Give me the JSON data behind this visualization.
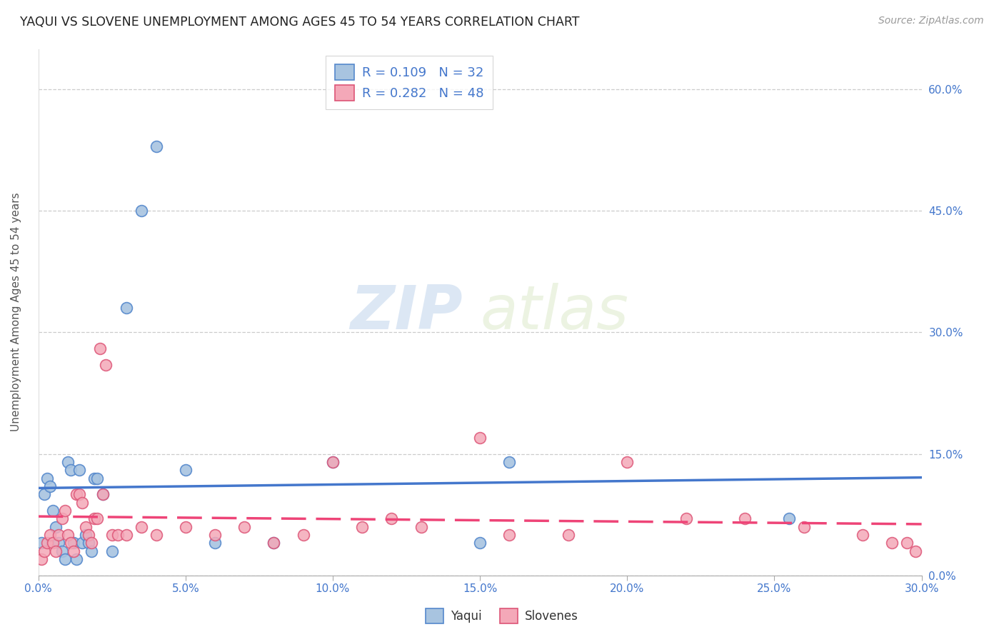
{
  "title": "YAQUI VS SLOVENE UNEMPLOYMENT AMONG AGES 45 TO 54 YEARS CORRELATION CHART",
  "source": "Source: ZipAtlas.com",
  "ylabel": "Unemployment Among Ages 45 to 54 years",
  "xlim": [
    0.0,
    0.3
  ],
  "ylim": [
    0.0,
    0.65
  ],
  "xticks": [
    0.0,
    0.05,
    0.1,
    0.15,
    0.2,
    0.25,
    0.3
  ],
  "yticks": [
    0.0,
    0.15,
    0.3,
    0.45,
    0.6
  ],
  "yaqui_color": "#a8c4e0",
  "yaqui_edge_color": "#5588cc",
  "slovene_color": "#f4a8b8",
  "slovene_edge_color": "#dd5577",
  "yaqui_line_color": "#4477cc",
  "slovene_line_color": "#ee4477",
  "background_color": "#ffffff",
  "grid_color": "#cccccc",
  "watermark_zip": "ZIP",
  "watermark_atlas": "atlas",
  "tick_color": "#4477cc",
  "legend_R_yaqui": "0.109",
  "legend_N_yaqui": "32",
  "legend_R_slovene": "0.282",
  "legend_N_slovene": "48",
  "yaqui_x": [
    0.001,
    0.002,
    0.003,
    0.004,
    0.005,
    0.006,
    0.007,
    0.008,
    0.009,
    0.01,
    0.011,
    0.012,
    0.013,
    0.014,
    0.015,
    0.016,
    0.017,
    0.018,
    0.019,
    0.02,
    0.022,
    0.025,
    0.03,
    0.035,
    0.04,
    0.05,
    0.06,
    0.08,
    0.1,
    0.15,
    0.16,
    0.255
  ],
  "yaqui_y": [
    0.04,
    0.1,
    0.12,
    0.11,
    0.08,
    0.06,
    0.04,
    0.03,
    0.02,
    0.14,
    0.13,
    0.04,
    0.02,
    0.13,
    0.04,
    0.05,
    0.04,
    0.03,
    0.12,
    0.12,
    0.1,
    0.03,
    0.33,
    0.45,
    0.53,
    0.13,
    0.04,
    0.04,
    0.14,
    0.04,
    0.14,
    0.07
  ],
  "slovene_x": [
    0.001,
    0.002,
    0.003,
    0.004,
    0.005,
    0.006,
    0.007,
    0.008,
    0.009,
    0.01,
    0.011,
    0.012,
    0.013,
    0.014,
    0.015,
    0.016,
    0.017,
    0.018,
    0.019,
    0.02,
    0.021,
    0.022,
    0.023,
    0.025,
    0.027,
    0.03,
    0.035,
    0.04,
    0.05,
    0.06,
    0.07,
    0.08,
    0.09,
    0.1,
    0.11,
    0.12,
    0.13,
    0.15,
    0.16,
    0.18,
    0.2,
    0.22,
    0.24,
    0.26,
    0.28,
    0.29,
    0.295,
    0.298
  ],
  "slovene_y": [
    0.02,
    0.03,
    0.04,
    0.05,
    0.04,
    0.03,
    0.05,
    0.07,
    0.08,
    0.05,
    0.04,
    0.03,
    0.1,
    0.1,
    0.09,
    0.06,
    0.05,
    0.04,
    0.07,
    0.07,
    0.28,
    0.1,
    0.26,
    0.05,
    0.05,
    0.05,
    0.06,
    0.05,
    0.06,
    0.05,
    0.06,
    0.04,
    0.05,
    0.14,
    0.06,
    0.07,
    0.06,
    0.17,
    0.05,
    0.05,
    0.14,
    0.07,
    0.07,
    0.06,
    0.05,
    0.04,
    0.04,
    0.03
  ]
}
